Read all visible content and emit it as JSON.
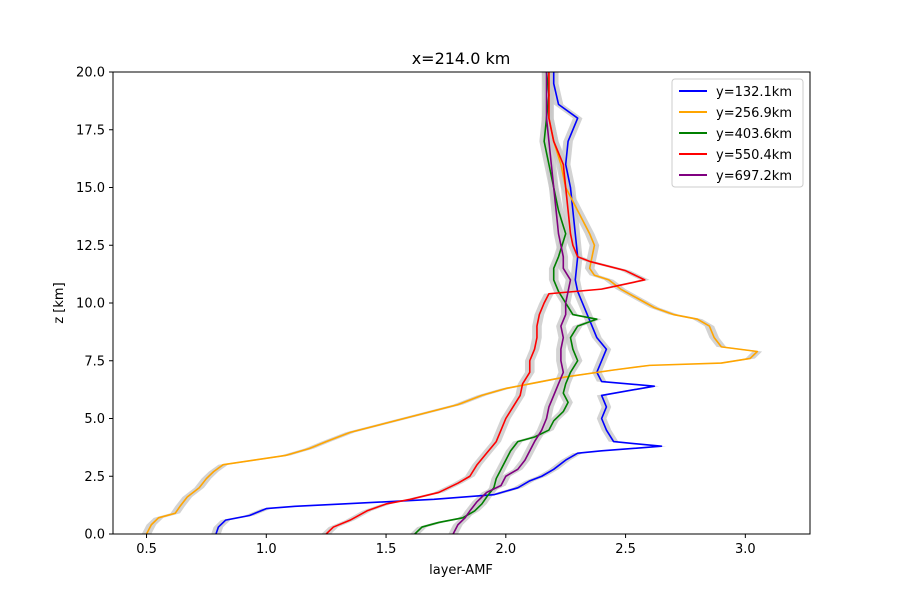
{
  "chart_data": {
    "type": "line",
    "title": "x=214.0 km",
    "xlabel": "layer-AMF",
    "ylabel": "z [km]",
    "xlim": [
      0.36,
      3.27
    ],
    "ylim": [
      0,
      20
    ],
    "x_ticks": [
      "0.5",
      "1.0",
      "1.5",
      "2.0",
      "2.5",
      "3.0"
    ],
    "x_tick_values": [
      0.5,
      1.0,
      1.5,
      2.0,
      2.5,
      3.0
    ],
    "y_ticks": [
      "0.0",
      "2.5",
      "5.0",
      "7.5",
      "10.0",
      "12.5",
      "15.0",
      "17.5",
      "20.0"
    ],
    "y_tick_values": [
      0,
      2.5,
      5,
      7.5,
      10,
      12.5,
      15,
      17.5,
      20
    ],
    "grid": false,
    "legend_position": "upper-right",
    "uncertainty_band": {
      "color": "#c8c8c8",
      "half_width": 0.02
    },
    "series": [
      {
        "name": "y=132.1km",
        "color": "#0000ff",
        "points": [
          [
            0.79,
            0
          ],
          [
            0.8,
            0.3
          ],
          [
            0.83,
            0.6
          ],
          [
            0.93,
            0.8
          ],
          [
            1.0,
            1.1
          ],
          [
            1.12,
            1.2
          ],
          [
            1.32,
            1.3
          ],
          [
            1.7,
            1.5
          ],
          [
            1.95,
            1.7
          ],
          [
            2.05,
            2.0
          ],
          [
            2.1,
            2.3
          ],
          [
            2.15,
            2.5
          ],
          [
            2.2,
            2.8
          ],
          [
            2.25,
            3.2
          ],
          [
            2.3,
            3.5
          ],
          [
            2.4,
            3.6
          ],
          [
            2.65,
            3.8
          ],
          [
            2.45,
            4.0
          ],
          [
            2.42,
            4.5
          ],
          [
            2.4,
            5.0
          ],
          [
            2.42,
            5.5
          ],
          [
            2.4,
            6.0
          ],
          [
            2.62,
            6.4
          ],
          [
            2.4,
            6.6
          ],
          [
            2.38,
            7.0
          ],
          [
            2.4,
            7.5
          ],
          [
            2.42,
            8.0
          ],
          [
            2.38,
            8.5
          ],
          [
            2.36,
            9.0
          ],
          [
            2.34,
            9.5
          ],
          [
            2.32,
            10.0
          ],
          [
            2.3,
            10.5
          ],
          [
            2.29,
            11.0
          ],
          [
            2.3,
            12.0
          ],
          [
            2.29,
            13.0
          ],
          [
            2.28,
            14.0
          ],
          [
            2.27,
            15.0
          ],
          [
            2.25,
            16.0
          ],
          [
            2.26,
            17.0
          ],
          [
            2.3,
            18.0
          ],
          [
            2.22,
            18.6
          ],
          [
            2.2,
            19.5
          ],
          [
            2.2,
            20
          ]
        ]
      },
      {
        "name": "y=256.9km",
        "color": "#ffa500",
        "points": [
          [
            0.5,
            0
          ],
          [
            0.52,
            0.4
          ],
          [
            0.55,
            0.7
          ],
          [
            0.62,
            0.9
          ],
          [
            0.64,
            1.2
          ],
          [
            0.67,
            1.6
          ],
          [
            0.72,
            2.0
          ],
          [
            0.75,
            2.4
          ],
          [
            0.78,
            2.7
          ],
          [
            0.82,
            3.0
          ],
          [
            0.95,
            3.2
          ],
          [
            1.08,
            3.4
          ],
          [
            1.18,
            3.7
          ],
          [
            1.25,
            4.0
          ],
          [
            1.35,
            4.4
          ],
          [
            1.5,
            4.8
          ],
          [
            1.65,
            5.2
          ],
          [
            1.8,
            5.6
          ],
          [
            1.9,
            6.0
          ],
          [
            2.0,
            6.3
          ],
          [
            2.15,
            6.6
          ],
          [
            2.25,
            6.8
          ],
          [
            2.45,
            7.1
          ],
          [
            2.6,
            7.3
          ],
          [
            2.9,
            7.4
          ],
          [
            3.02,
            7.6
          ],
          [
            3.05,
            7.9
          ],
          [
            2.9,
            8.1
          ],
          [
            2.87,
            8.5
          ],
          [
            2.85,
            9.0
          ],
          [
            2.8,
            9.3
          ],
          [
            2.7,
            9.5
          ],
          [
            2.62,
            9.8
          ],
          [
            2.55,
            10.2
          ],
          [
            2.48,
            10.6
          ],
          [
            2.43,
            11.0
          ],
          [
            2.37,
            11.2
          ],
          [
            2.35,
            11.5
          ],
          [
            2.36,
            12.0
          ],
          [
            2.37,
            12.5
          ],
          [
            2.35,
            13.0
          ],
          [
            2.3,
            14.0
          ],
          [
            2.25,
            15.0
          ],
          [
            2.23,
            16.0
          ],
          [
            2.2,
            17.0
          ],
          [
            2.18,
            18.0
          ],
          [
            2.18,
            19.0
          ],
          [
            2.18,
            20
          ]
        ]
      },
      {
        "name": "y=403.6km",
        "color": "#008000",
        "points": [
          [
            1.62,
            0
          ],
          [
            1.65,
            0.3
          ],
          [
            1.72,
            0.5
          ],
          [
            1.82,
            0.7
          ],
          [
            1.87,
            1.0
          ],
          [
            1.9,
            1.3
          ],
          [
            1.92,
            1.6
          ],
          [
            1.95,
            2.0
          ],
          [
            1.96,
            2.4
          ],
          [
            1.98,
            2.8
          ],
          [
            2.0,
            3.2
          ],
          [
            2.02,
            3.6
          ],
          [
            2.05,
            4.0
          ],
          [
            2.12,
            4.2
          ],
          [
            2.18,
            4.5
          ],
          [
            2.2,
            4.9
          ],
          [
            2.24,
            5.3
          ],
          [
            2.26,
            5.7
          ],
          [
            2.24,
            6.1
          ],
          [
            2.25,
            6.5
          ],
          [
            2.27,
            7.0
          ],
          [
            2.3,
            7.5
          ],
          [
            2.28,
            8.0
          ],
          [
            2.27,
            8.5
          ],
          [
            2.3,
            9.0
          ],
          [
            2.38,
            9.3
          ],
          [
            2.28,
            9.5
          ],
          [
            2.25,
            10.0
          ],
          [
            2.22,
            10.5
          ],
          [
            2.2,
            11.0
          ],
          [
            2.2,
            11.5
          ],
          [
            2.22,
            12.0
          ],
          [
            2.25,
            13.0
          ],
          [
            2.22,
            14.0
          ],
          [
            2.2,
            15.0
          ],
          [
            2.18,
            16.0
          ],
          [
            2.16,
            17.0
          ],
          [
            2.17,
            18.0
          ],
          [
            2.18,
            19.0
          ],
          [
            2.17,
            20
          ]
        ]
      },
      {
        "name": "y=550.4km",
        "color": "#ff0000",
        "points": [
          [
            1.25,
            0
          ],
          [
            1.28,
            0.3
          ],
          [
            1.35,
            0.6
          ],
          [
            1.42,
            1.0
          ],
          [
            1.5,
            1.3
          ],
          [
            1.6,
            1.5
          ],
          [
            1.72,
            1.8
          ],
          [
            1.8,
            2.2
          ],
          [
            1.85,
            2.5
          ],
          [
            1.88,
            3.0
          ],
          [
            1.92,
            3.5
          ],
          [
            1.96,
            4.0
          ],
          [
            1.98,
            4.5
          ],
          [
            2.0,
            5.0
          ],
          [
            2.03,
            5.5
          ],
          [
            2.06,
            6.0
          ],
          [
            2.07,
            6.5
          ],
          [
            2.1,
            7.0
          ],
          [
            2.1,
            7.5
          ],
          [
            2.12,
            8.0
          ],
          [
            2.13,
            8.5
          ],
          [
            2.13,
            9.0
          ],
          [
            2.14,
            9.5
          ],
          [
            2.16,
            10.0
          ],
          [
            2.18,
            10.4
          ],
          [
            2.4,
            10.6
          ],
          [
            2.58,
            11.0
          ],
          [
            2.5,
            11.4
          ],
          [
            2.35,
            11.8
          ],
          [
            2.3,
            12.0
          ],
          [
            2.28,
            12.5
          ],
          [
            2.27,
            13.0
          ],
          [
            2.26,
            14.0
          ],
          [
            2.25,
            15.0
          ],
          [
            2.24,
            16.0
          ],
          [
            2.2,
            17.0
          ],
          [
            2.18,
            18.0
          ],
          [
            2.18,
            19.0
          ],
          [
            2.18,
            20
          ]
        ]
      },
      {
        "name": "y=697.2km",
        "color": "#800080",
        "points": [
          [
            1.78,
            0
          ],
          [
            1.8,
            0.4
          ],
          [
            1.83,
            0.7
          ],
          [
            1.85,
            1.0
          ],
          [
            1.88,
            1.4
          ],
          [
            1.92,
            1.8
          ],
          [
            1.98,
            2.1
          ],
          [
            2.0,
            2.5
          ],
          [
            2.05,
            2.8
          ],
          [
            2.08,
            3.2
          ],
          [
            2.1,
            3.6
          ],
          [
            2.12,
            4.0
          ],
          [
            2.15,
            4.5
          ],
          [
            2.17,
            5.0
          ],
          [
            2.18,
            5.5
          ],
          [
            2.2,
            6.0
          ],
          [
            2.22,
            6.5
          ],
          [
            2.24,
            7.0
          ],
          [
            2.23,
            7.5
          ],
          [
            2.23,
            8.0
          ],
          [
            2.24,
            8.5
          ],
          [
            2.23,
            9.0
          ],
          [
            2.25,
            9.5
          ],
          [
            2.25,
            10.0
          ],
          [
            2.26,
            10.5
          ],
          [
            2.27,
            11.0
          ],
          [
            2.24,
            11.5
          ],
          [
            2.24,
            12.0
          ],
          [
            2.22,
            13.0
          ],
          [
            2.21,
            14.0
          ],
          [
            2.2,
            15.0
          ],
          [
            2.19,
            16.0
          ],
          [
            2.18,
            17.0
          ],
          [
            2.17,
            18.0
          ],
          [
            2.17,
            19.0
          ],
          [
            2.17,
            20
          ]
        ]
      }
    ]
  }
}
